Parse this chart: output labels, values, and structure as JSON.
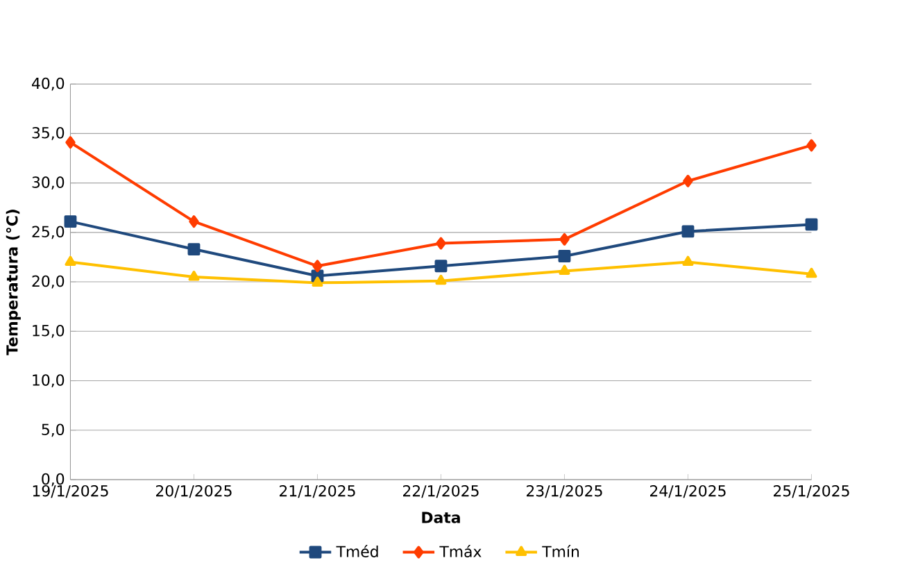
{
  "chart_data": {
    "type": "line",
    "xlabel": "Data",
    "ylabel": "Temperatura (°C)",
    "categories": [
      "19/1/2025",
      "20/1/2025",
      "21/1/2025",
      "22/1/2025",
      "23/1/2025",
      "24/1/2025",
      "25/1/2025"
    ],
    "series": [
      {
        "name": "Tméd",
        "color": "#1f497d",
        "marker": "square",
        "values": [
          26.1,
          23.3,
          20.6,
          21.6,
          22.6,
          25.1,
          25.8
        ]
      },
      {
        "name": "Tmáx",
        "color": "#ff3c00",
        "marker": "diamond",
        "values": [
          34.1,
          26.1,
          21.6,
          23.9,
          24.3,
          30.2,
          33.8
        ]
      },
      {
        "name": "Tmín",
        "color": "#ffc000",
        "marker": "triangle",
        "values": [
          22.0,
          20.5,
          19.9,
          20.1,
          21.1,
          22.0,
          20.8
        ]
      }
    ],
    "ylim": [
      0,
      40
    ],
    "yticks": [
      {
        "value": 0,
        "label": "0,0"
      },
      {
        "value": 5,
        "label": "5,0"
      },
      {
        "value": 10,
        "label": "10,0"
      },
      {
        "value": 15,
        "label": "15,0"
      },
      {
        "value": 20,
        "label": "20,0"
      },
      {
        "value": 25,
        "label": "25,0"
      },
      {
        "value": 30,
        "label": "30,0"
      },
      {
        "value": 35,
        "label": "35,0"
      },
      {
        "value": 40,
        "label": "40,0"
      }
    ],
    "grid": "y",
    "legend": "bottom",
    "line_style": "solid"
  }
}
